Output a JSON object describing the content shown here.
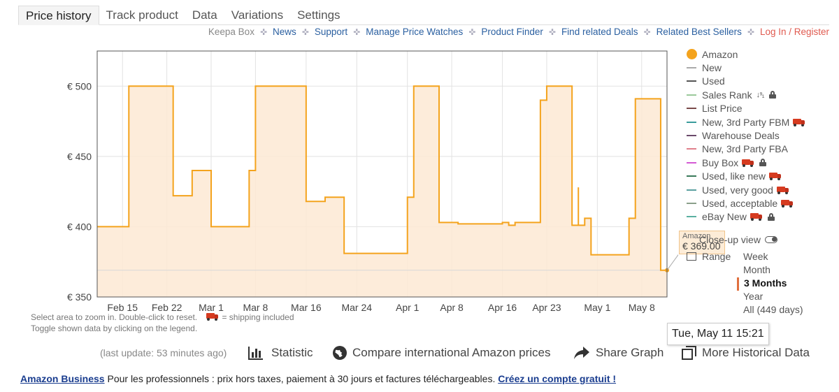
{
  "tabs": [
    {
      "label": "Price history",
      "active": true
    },
    {
      "label": "Track product"
    },
    {
      "label": "Data"
    },
    {
      "label": "Variations"
    },
    {
      "label": "Settings"
    }
  ],
  "top_links": [
    {
      "label": "Keepa Box",
      "style": "gray"
    },
    {
      "label": "News"
    },
    {
      "label": "Support"
    },
    {
      "label": "Manage Price Watches"
    },
    {
      "label": "Product Finder"
    },
    {
      "label": "Find related Deals"
    },
    {
      "label": "Related Best Sellers"
    },
    {
      "label": "Log In / Register",
      "style": "red"
    }
  ],
  "legend": [
    {
      "label": "Amazon",
      "color": "#f4a31d",
      "marker": "dot"
    },
    {
      "label": "New",
      "color": "#aaaaaa"
    },
    {
      "label": "Used",
      "color": "#555555"
    },
    {
      "label": "Sales Rank",
      "color": "#9bc99b",
      "sort_icon": true,
      "lock": true
    },
    {
      "label": "List Price",
      "color": "#7a4a4a"
    },
    {
      "label": "New, 3rd Party FBM",
      "color": "#3a9c9c",
      "truck": true
    },
    {
      "label": "Warehouse Deals",
      "color": "#6b4a6b"
    },
    {
      "label": "New, 3rd Party FBA",
      "color": "#e0808c"
    },
    {
      "label": "Buy Box",
      "color": "#d45ad4",
      "truck": true,
      "lock": true
    },
    {
      "label": "Used, like new",
      "color": "#3a7a5a",
      "truck": true
    },
    {
      "label": "Used, very good",
      "color": "#5aa0a0",
      "truck": true
    },
    {
      "label": "Used, acceptable",
      "color": "#8aa08a",
      "truck": true
    },
    {
      "label": "eBay New",
      "color": "#5ab0a0",
      "truck": true,
      "lock": true
    }
  ],
  "closeup_label": "Close-up view",
  "range_label": "Range",
  "ranges": [
    {
      "label": "Week"
    },
    {
      "label": "Month"
    },
    {
      "label": "3 Months",
      "active": true
    },
    {
      "label": "Year"
    },
    {
      "label": "All (449 days)"
    }
  ],
  "tooltip": {
    "series": "Amazon",
    "value": "€ 369.00",
    "date": "Tue, May 11 15:21"
  },
  "hint": {
    "line1": "Select area to zoom in. Double-click to reset.",
    "shipping": "= shipping included",
    "line2": "Toggle shown data by clicking on the legend."
  },
  "toolbar": {
    "last_update": "(last update: 53 minutes ago)",
    "statistic": "Statistic",
    "compare": "Compare international Amazon prices",
    "share": "Share Graph",
    "more": "More Historical Data"
  },
  "footer": {
    "brand": "Amazon Business",
    "text": " Pour les professionnels : prix hors taxes, paiement à 30 jours et factures téléchargeables. ",
    "cta": "Créez un compte gratuit !"
  },
  "chart_data": {
    "type": "area",
    "series": [
      {
        "name": "Amazon",
        "color": "#f4a31d"
      }
    ],
    "yticks": [
      "€ 500",
      "€ 450",
      "€ 400",
      "€ 350"
    ],
    "ylim": [
      350,
      500
    ],
    "xticks": [
      "Feb 15",
      "Feb 22",
      "Mar 1",
      "Mar 8",
      "Mar 16",
      "Mar 24",
      "Apr 1",
      "Apr 8",
      "Apr 16",
      "Apr 23",
      "May 1",
      "May 8"
    ],
    "x_tick_dates": [
      "2021-02-15",
      "2021-02-22",
      "2021-03-01",
      "2021-03-08",
      "2021-03-16",
      "2021-03-24",
      "2021-04-01",
      "2021-04-08",
      "2021-04-16",
      "2021-04-23",
      "2021-05-01",
      "2021-05-08"
    ],
    "x_range": [
      "2021-02-11",
      "2021-05-12"
    ],
    "grid": true,
    "reference_value": 369,
    "points": [
      [
        "2021-02-11",
        400
      ],
      [
        "2021-02-16",
        400
      ],
      [
        "2021-02-16",
        500
      ],
      [
        "2021-02-23",
        500
      ],
      [
        "2021-02-23",
        422
      ],
      [
        "2021-02-26",
        422
      ],
      [
        "2021-02-26",
        440
      ],
      [
        "2021-03-01",
        440
      ],
      [
        "2021-03-01",
        400
      ],
      [
        "2021-03-07",
        400
      ],
      [
        "2021-03-07",
        440
      ],
      [
        "2021-03-08",
        440
      ],
      [
        "2021-03-08",
        500
      ],
      [
        "2021-03-16",
        500
      ],
      [
        "2021-03-16",
        418
      ],
      [
        "2021-03-19",
        418
      ],
      [
        "2021-03-19",
        421
      ],
      [
        "2021-03-22",
        421
      ],
      [
        "2021-03-22",
        381
      ],
      [
        "2021-04-01",
        381
      ],
      [
        "2021-04-01",
        421
      ],
      [
        "2021-04-02",
        421
      ],
      [
        "2021-04-02",
        500
      ],
      [
        "2021-04-06",
        500
      ],
      [
        "2021-04-06",
        403
      ],
      [
        "2021-04-09",
        403
      ],
      [
        "2021-04-09",
        402
      ],
      [
        "2021-04-16",
        402
      ],
      [
        "2021-04-16",
        403
      ],
      [
        "2021-04-17",
        403
      ],
      [
        "2021-04-17",
        401
      ],
      [
        "2021-04-18",
        401
      ],
      [
        "2021-04-18",
        403
      ],
      [
        "2021-04-22",
        403
      ],
      [
        "2021-04-22",
        490
      ],
      [
        "2021-04-23",
        490
      ],
      [
        "2021-04-23",
        500
      ],
      [
        "2021-04-27",
        500
      ],
      [
        "2021-04-27",
        401
      ],
      [
        "2021-04-28",
        401
      ],
      [
        "2021-04-28",
        428
      ],
      [
        "2021-04-28",
        401
      ],
      [
        "2021-04-29",
        401
      ],
      [
        "2021-04-29",
        406
      ],
      [
        "2021-04-30",
        406
      ],
      [
        "2021-04-30",
        380
      ],
      [
        "2021-05-06",
        380
      ],
      [
        "2021-05-06",
        406
      ],
      [
        "2021-05-07",
        406
      ],
      [
        "2021-05-07",
        491
      ],
      [
        "2021-05-11",
        491
      ],
      [
        "2021-05-11",
        369
      ],
      [
        "2021-05-12",
        369
      ]
    ]
  }
}
